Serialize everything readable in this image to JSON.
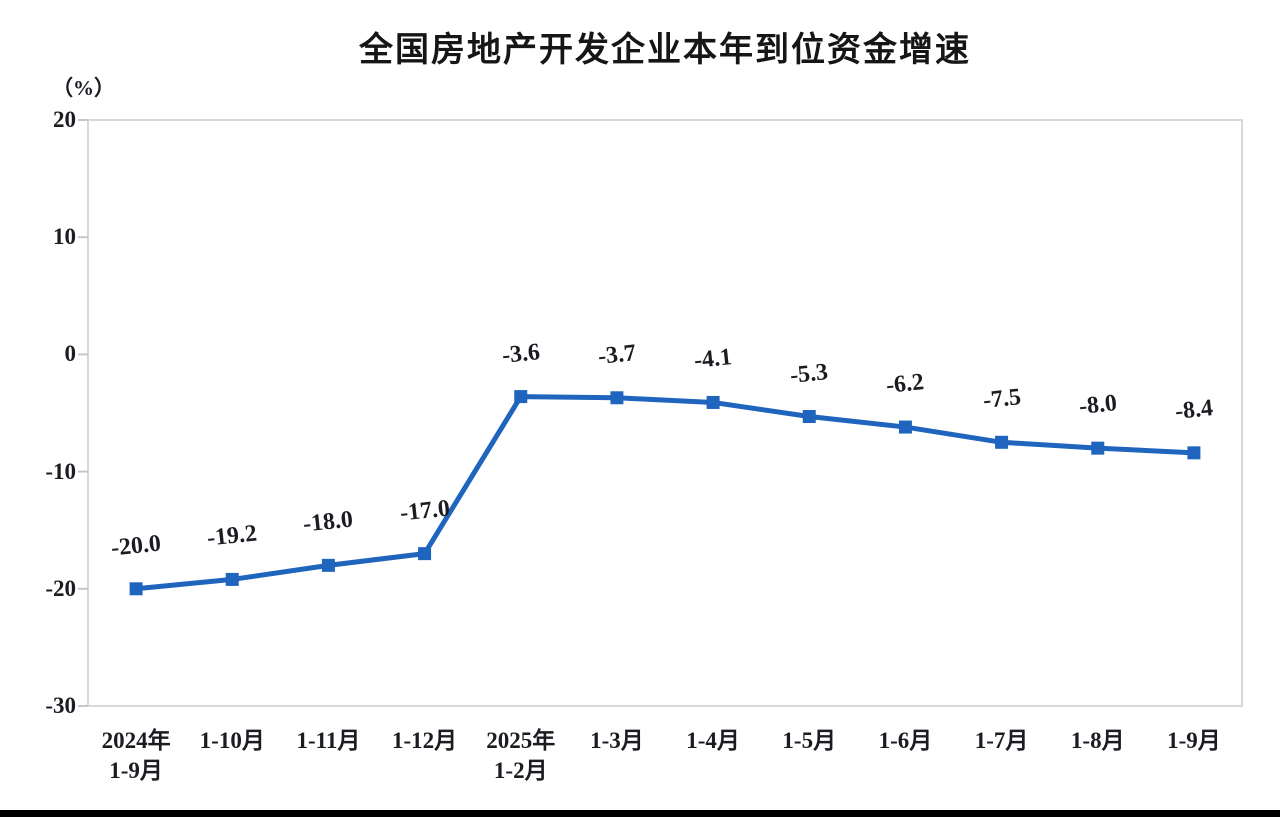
{
  "page": {
    "background": "#ffffff",
    "bottom_rule_color": "#000000"
  },
  "chart_data": {
    "type": "line",
    "title": "全国房地产开发企业本年到位资金增速",
    "unit_label": "（%）",
    "categories": [
      "2024年\n1-9月",
      "1-10月",
      "1-11月",
      "1-12月",
      "2025年\n1-2月",
      "1-3月",
      "1-4月",
      "1-5月",
      "1-6月",
      "1-7月",
      "1-8月",
      "1-9月"
    ],
    "series": [
      {
        "name": "本年到位资金增速",
        "values": [
          -20.0,
          -19.2,
          -18.0,
          -17.0,
          -3.6,
          -3.7,
          -4.1,
          -5.3,
          -6.2,
          -7.5,
          -8.0,
          -8.4
        ],
        "data_labels": [
          "-20.0",
          "-19.2",
          "-18.0",
          "-17.0",
          "-3.6",
          "-3.7",
          "-4.1",
          "-5.3",
          "-6.2",
          "-7.5",
          "-8.0",
          "-8.4"
        ]
      }
    ],
    "ylim": [
      -30,
      20
    ],
    "yticks": [
      20,
      10,
      0,
      -10,
      -20,
      -30
    ],
    "grid": false,
    "legend_position": "none",
    "marker": "square",
    "colors": {
      "line": "#1f65be",
      "marker": "#1f65be",
      "plot_border": "#d8d8d8",
      "tick_mark": "#c6c6c6",
      "text": "#1b1b22",
      "title_text": "#161616"
    }
  }
}
